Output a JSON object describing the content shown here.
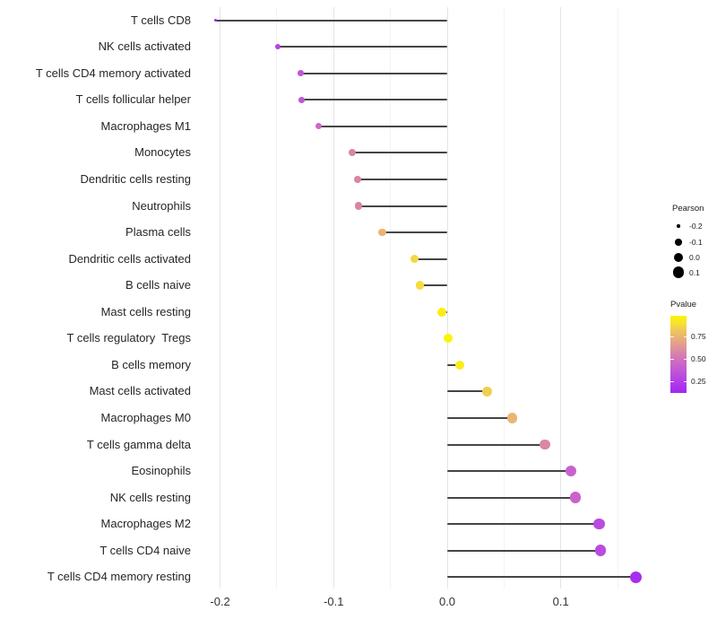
{
  "chart_data": {
    "type": "lollipop",
    "title": "",
    "xlabel": "",
    "ylabel": "",
    "x_tick_values": [
      -0.2,
      -0.1,
      0.0,
      0.1
    ],
    "x_tick_labels": [
      "-0.2",
      "-0.1",
      "0.0",
      "0.1"
    ],
    "x_minor_tick_values": [
      -0.15,
      -0.05,
      0.05,
      0.15
    ],
    "xlim": [
      -0.208,
      0.174
    ],
    "grid": "vertical major+minor, no horizontal",
    "stem_color": "#454545",
    "points": [
      {
        "label": "T cells CD8",
        "pearson": -0.204,
        "pvalue": 0.13
      },
      {
        "label": "NK cells activated",
        "pearson": -0.149,
        "pvalue": 0.27
      },
      {
        "label": "T cells CD4 memory activated",
        "pearson": -0.129,
        "pvalue": 0.36
      },
      {
        "label": "T cells follicular helper",
        "pearson": -0.128,
        "pvalue": 0.36
      },
      {
        "label": "Macrophages M1",
        "pearson": -0.113,
        "pvalue": 0.45
      },
      {
        "label": "Monocytes",
        "pearson": -0.084,
        "pvalue": 0.57
      },
      {
        "label": "Dendritic cells resting",
        "pearson": -0.079,
        "pvalue": 0.57
      },
      {
        "label": "Neutrophils",
        "pearson": -0.078,
        "pvalue": 0.57
      },
      {
        "label": "Plasma cells",
        "pearson": -0.057,
        "pvalue": 0.75
      },
      {
        "label": "Dendritic cells activated",
        "pearson": -0.029,
        "pvalue": 0.87
      },
      {
        "label": "B cells naive",
        "pearson": -0.024,
        "pvalue": 0.88
      },
      {
        "label": "Mast cells resting",
        "pearson": -0.005,
        "pvalue": 0.95
      },
      {
        "label": "T cells regulatory  Tregs",
        "pearson": 0.001,
        "pvalue": 0.98
      },
      {
        "label": "B cells memory",
        "pearson": 0.011,
        "pvalue": 0.94
      },
      {
        "label": "Mast cells activated",
        "pearson": 0.035,
        "pvalue": 0.84
      },
      {
        "label": "Macrophages M0",
        "pearson": 0.057,
        "pvalue": 0.75
      },
      {
        "label": "T cells gamma delta",
        "pearson": 0.086,
        "pvalue": 0.58
      },
      {
        "label": "Eosinophils",
        "pearson": 0.109,
        "pvalue": 0.43
      },
      {
        "label": "NK cells resting",
        "pearson": 0.113,
        "pvalue": 0.43
      },
      {
        "label": "Macrophages M2",
        "pearson": 0.134,
        "pvalue": 0.31
      },
      {
        "label": "T cells CD4 naive",
        "pearson": 0.135,
        "pvalue": 0.31
      },
      {
        "label": "T cells CD4 memory resting",
        "pearson": 0.166,
        "pvalue": 0.16
      }
    ],
    "legend": {
      "size": {
        "title": "Pearson",
        "tick_labels": [
          "-0.2",
          "-0.1",
          "0.0",
          "0.1"
        ],
        "tick_values": [
          -0.2,
          -0.1,
          0.0,
          0.1
        ],
        "dot_color": "#000000"
      },
      "color": {
        "title": "Pvalue",
        "tick_labels": [
          "0.75",
          "0.50",
          "0.25"
        ],
        "tick_values": [
          0.75,
          0.5,
          0.25
        ],
        "limits": [
          0.12,
          0.98
        ],
        "gradient_stops": [
          {
            "t": 0.0,
            "color": "#a226f2"
          },
          {
            "t": 0.18,
            "color": "#b544e4"
          },
          {
            "t": 0.36,
            "color": "#ca62cc"
          },
          {
            "t": 0.52,
            "color": "#d884a8"
          },
          {
            "t": 0.66,
            "color": "#e5a487"
          },
          {
            "t": 0.8,
            "color": "#efc45e"
          },
          {
            "t": 0.92,
            "color": "#f7e62c"
          },
          {
            "t": 1.0,
            "color": "#fcf500"
          }
        ]
      }
    }
  }
}
